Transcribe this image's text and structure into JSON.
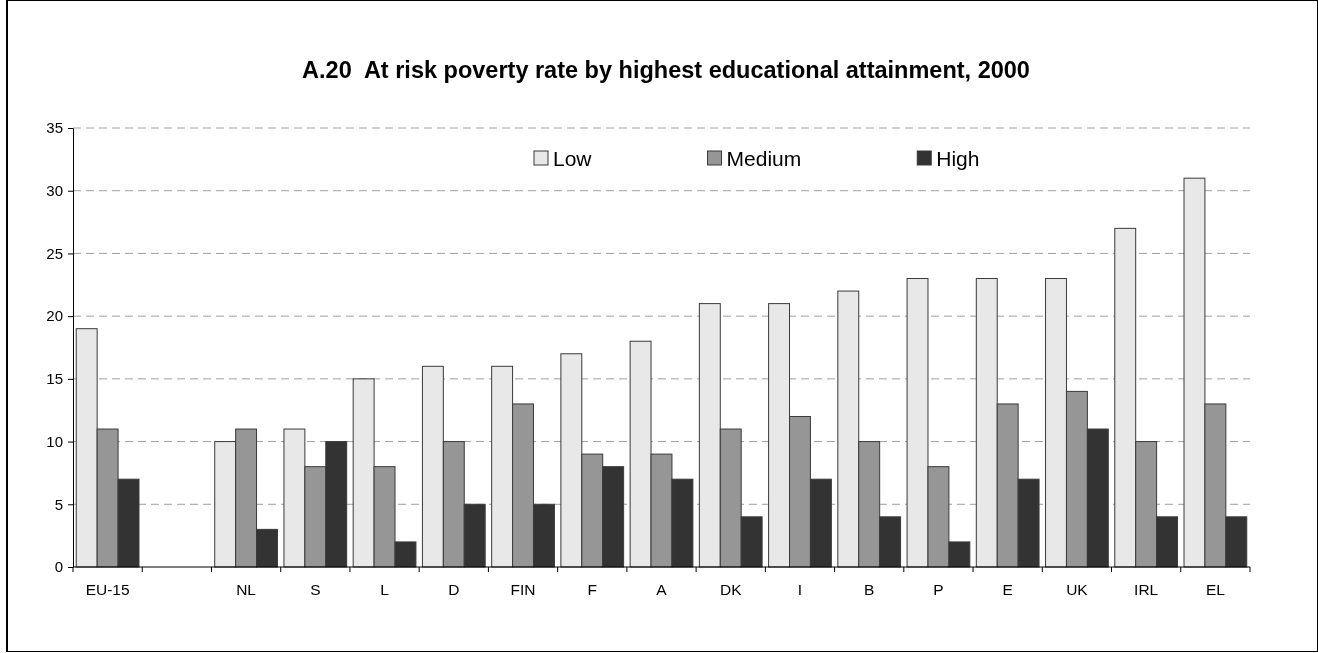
{
  "chart_data": {
    "type": "bar",
    "title": "A.20  At risk poverty rate by highest educational attainment, 2000",
    "categories": [
      "EU-15",
      null,
      "NL",
      "S",
      "L",
      "D",
      "FIN",
      "F",
      "A",
      "DK",
      "I",
      "B",
      "P",
      "E",
      "UK",
      "IRL",
      "EL"
    ],
    "series": [
      {
        "name": "Low",
        "color": "#e8e8e8",
        "values": [
          19,
          null,
          10,
          11,
          15,
          16,
          16,
          17,
          18,
          21,
          21,
          22,
          23,
          23,
          23,
          27,
          31
        ]
      },
      {
        "name": "Medium",
        "color": "#969696",
        "values": [
          11,
          null,
          11,
          8,
          8,
          10,
          13,
          9,
          9,
          11,
          12,
          10,
          8,
          13,
          14,
          10,
          13
        ]
      },
      {
        "name": "High",
        "color": "#333333",
        "values": [
          7,
          null,
          3,
          10,
          2,
          5,
          5,
          8,
          7,
          4,
          7,
          4,
          2,
          7,
          11,
          4,
          4
        ]
      }
    ],
    "ylim": [
      0,
      35
    ],
    "yticks": [
      0,
      5,
      10,
      15,
      20,
      25,
      30,
      35
    ],
    "grid": "y",
    "legend": "top"
  }
}
